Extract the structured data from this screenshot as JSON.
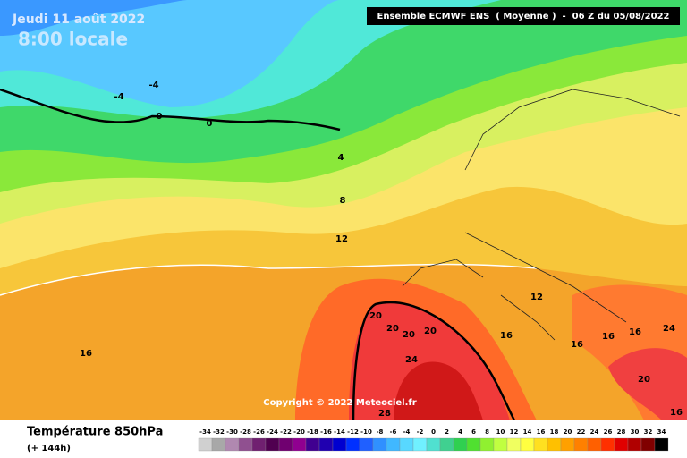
{
  "header": {
    "date": "Jeudi 11 août 2022",
    "time": "8:00 locale",
    "source": "Ensemble ECMWF ENS  ( Moyenne )  -  06 Z du 05/08/2022"
  },
  "copyright": "Copyright © 2022 Meteociel.fr",
  "footer": {
    "title": "Température 850hPa",
    "subtitle": "(+ 144h)"
  },
  "contour_labels": [
    "-4",
    "-4",
    "0",
    "0",
    "4",
    "8",
    "12",
    "20",
    "20",
    "20",
    "20",
    "24",
    "28",
    "12",
    "16",
    "16",
    "16",
    "16",
    "16",
    "20",
    "24",
    "16"
  ],
  "legend": {
    "labels": [
      -34,
      -32,
      -30,
      -28,
      -26,
      -24,
      -22,
      -20,
      -18,
      -16,
      -14,
      -12,
      -10,
      -8,
      -6,
      -4,
      -2,
      0,
      2,
      4,
      6,
      8,
      10,
      12,
      14,
      16,
      18,
      20,
      22,
      24,
      26,
      28,
      30,
      32,
      34
    ],
    "colors": [
      "#d0d0d0",
      "#a8a8a8",
      "#b088b0",
      "#905090",
      "#702070",
      "#500050",
      "#700070",
      "#900090",
      "#400090",
      "#2000b0",
      "#0000d0",
      "#0030ff",
      "#2060ff",
      "#3090ff",
      "#40b8ff",
      "#58d8ff",
      "#70f0ff",
      "#50e0d0",
      "#40d090",
      "#30d050",
      "#50e030",
      "#90f030",
      "#c0ff40",
      "#f0ff60",
      "#ffff40",
      "#ffe020",
      "#ffc000",
      "#ffa000",
      "#ff8000",
      "#ff6000",
      "#ff3000",
      "#e00000",
      "#b00000",
      "#800000",
      "#000000"
    ]
  }
}
